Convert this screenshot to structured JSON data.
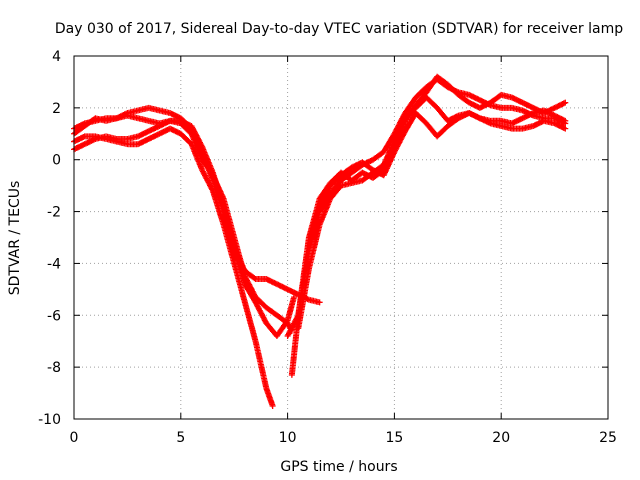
{
  "chart_data": {
    "type": "scatter",
    "title": "Day 030 of 2017, Sidereal Day-to-day VTEC variation (SDTVAR) for receiver lamp",
    "xlabel": "GPS time / hours",
    "ylabel": "SDTVAR / TECUs",
    "xlim": [
      0,
      25
    ],
    "ylim": [
      -10,
      4
    ],
    "xticks": [
      0,
      5,
      10,
      15,
      20,
      25
    ],
    "yticks": [
      -10,
      -8,
      -6,
      -4,
      -2,
      0,
      2,
      4
    ],
    "xtick_labels": [
      "0",
      "5",
      "10",
      "15",
      "20",
      "25"
    ],
    "ytick_labels": [
      "-10",
      "-8",
      "-6",
      "-4",
      "-2",
      "0",
      "2",
      "4"
    ],
    "grid": true,
    "marker": "+",
    "color": "#ff0000",
    "series": [
      {
        "name": "track-1",
        "x": [
          0.0,
          0.5,
          1.0,
          1.5,
          2.0,
          2.5,
          3.0,
          3.5,
          4.0,
          4.5,
          5.0,
          5.5,
          6.0,
          6.5,
          7.0,
          7.5,
          8.0,
          8.5,
          9.0,
          9.5,
          10.0,
          10.3
        ],
        "y": [
          1.2,
          1.4,
          1.5,
          1.6,
          1.6,
          1.7,
          1.6,
          1.5,
          1.4,
          1.5,
          1.5,
          1.3,
          0.5,
          -0.5,
          -1.8,
          -3.5,
          -4.8,
          -5.5,
          -6.3,
          -6.8,
          -6.2,
          -5.3
        ]
      },
      {
        "name": "track-2",
        "x": [
          0.0,
          0.5,
          1.0,
          1.5,
          2.0,
          2.5,
          3.0,
          3.5,
          4.0,
          4.5,
          5.0,
          5.5,
          6.0,
          6.5,
          7.0,
          7.5,
          8.0,
          8.5,
          9.0,
          9.3
        ],
        "y": [
          0.7,
          0.9,
          0.9,
          0.8,
          0.7,
          0.6,
          0.6,
          0.8,
          1.0,
          1.2,
          1.0,
          0.6,
          -0.4,
          -1.2,
          -2.5,
          -4.0,
          -5.5,
          -7.0,
          -8.8,
          -9.5
        ]
      },
      {
        "name": "track-3",
        "x": [
          0.0,
          0.5,
          1.0,
          1.5,
          2.0,
          2.5,
          3.0,
          3.5,
          4.0,
          4.5,
          5.0,
          5.5,
          6.0,
          6.5,
          7.0,
          7.5,
          8.0,
          8.5,
          9.0,
          9.5,
          10.0,
          10.5,
          11.0,
          11.5
        ],
        "y": [
          1.0,
          1.3,
          1.6,
          1.5,
          1.6,
          1.8,
          1.9,
          2.0,
          1.9,
          1.8,
          1.6,
          1.2,
          0.3,
          -0.8,
          -2.0,
          -3.4,
          -4.3,
          -4.6,
          -4.6,
          -4.8,
          -5.0,
          -5.2,
          -5.4,
          -5.5
        ]
      },
      {
        "name": "track-4",
        "x": [
          0.0,
          0.5,
          1.0,
          1.5,
          2.0,
          2.5,
          3.0,
          3.5,
          4.0,
          4.5,
          5.0,
          5.5,
          6.0,
          6.5,
          7.0,
          7.5,
          8.0,
          8.5,
          9.0,
          9.5,
          10.0,
          10.2
        ],
        "y": [
          0.4,
          0.6,
          0.8,
          0.9,
          0.8,
          0.8,
          0.9,
          1.1,
          1.3,
          1.5,
          1.4,
          1.0,
          0.0,
          -0.6,
          -1.5,
          -3.0,
          -4.5,
          -5.3,
          -5.7,
          -6.0,
          -6.3,
          -6.6
        ]
      },
      {
        "name": "track-5",
        "x": [
          10.0,
          10.5,
          11.0,
          11.5,
          12.0,
          12.5,
          13.0,
          13.5,
          14.0,
          14.5,
          15.0,
          15.5,
          16.0,
          16.5,
          17.0,
          17.5,
          18.0,
          18.5,
          19.0,
          19.5,
          20.0,
          20.5,
          21.0,
          21.5,
          22.0,
          22.5,
          23.0
        ],
        "y": [
          -6.8,
          -6.0,
          -3.5,
          -2.0,
          -1.3,
          -0.8,
          -0.5,
          -0.2,
          0.0,
          0.3,
          1.0,
          1.8,
          2.4,
          2.8,
          3.1,
          2.8,
          2.6,
          2.5,
          2.3,
          2.1,
          2.0,
          2.0,
          1.9,
          1.7,
          1.6,
          1.6,
          1.4
        ]
      },
      {
        "name": "track-6",
        "x": [
          10.2,
          10.5,
          11.0,
          11.5,
          12.0,
          12.5,
          13.0,
          13.5,
          14.0,
          14.5,
          15.0,
          15.5,
          16.0,
          16.5,
          17.0,
          17.5,
          18.0,
          18.5,
          19.0,
          19.5,
          20.0,
          20.5,
          21.0,
          21.5,
          22.0,
          22.5,
          23.0
        ],
        "y": [
          -8.3,
          -6.0,
          -3.0,
          -1.5,
          -0.9,
          -0.5,
          -0.8,
          -0.5,
          -0.7,
          -0.4,
          0.6,
          1.5,
          2.1,
          2.6,
          3.2,
          2.9,
          2.5,
          2.2,
          2.0,
          2.2,
          2.5,
          2.4,
          2.2,
          2.0,
          1.8,
          2.0,
          2.2
        ]
      },
      {
        "name": "track-7",
        "x": [
          10.5,
          11.0,
          11.5,
          12.0,
          12.5,
          13.0,
          13.5,
          14.0,
          14.5,
          15.0,
          15.5,
          16.0,
          16.5,
          17.0,
          17.5,
          18.0,
          18.5,
          19.0,
          19.5,
          20.0,
          20.5,
          21.0,
          21.5,
          22.0,
          22.5,
          23.0
        ],
        "y": [
          -6.5,
          -4.2,
          -2.5,
          -1.5,
          -1.0,
          -0.9,
          -0.8,
          -0.5,
          -0.2,
          0.7,
          1.6,
          2.0,
          2.4,
          2.0,
          1.5,
          1.7,
          1.8,
          1.6,
          1.4,
          1.3,
          1.2,
          1.2,
          1.3,
          1.5,
          1.4,
          1.2
        ]
      },
      {
        "name": "track-8",
        "x": [
          11.0,
          11.5,
          12.0,
          12.5,
          13.0,
          13.5,
          14.0,
          14.5,
          15.0,
          15.5,
          16.0,
          16.5,
          17.0,
          17.5,
          18.0,
          18.5,
          19.0,
          19.5,
          20.0,
          20.5,
          21.0,
          21.5,
          22.0,
          22.5,
          23.0
        ],
        "y": [
          -3.0,
          -1.8,
          -1.0,
          -0.6,
          -0.3,
          -0.1,
          -0.4,
          -0.6,
          0.3,
          1.1,
          1.8,
          1.4,
          0.9,
          1.3,
          1.6,
          1.8,
          1.6,
          1.5,
          1.5,
          1.4,
          1.6,
          1.8,
          1.9,
          1.7,
          1.5
        ]
      }
    ]
  }
}
